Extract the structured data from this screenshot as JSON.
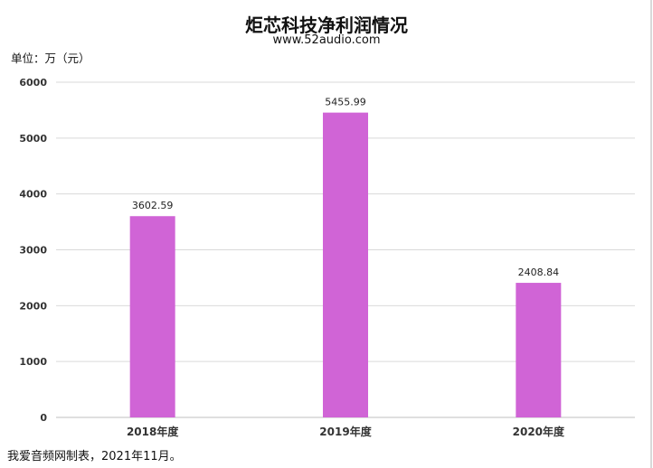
{
  "title": "炬芯科技净利润情况",
  "subtitle": "www.52audio.com",
  "unit_label": "单位：万（元）",
  "footnote": "我爱音频网制表，2021年11月。",
  "colors": {
    "bar": "#d064d6",
    "grid": "#d9d9d9",
    "axis": "#bfbfbf"
  },
  "chart_data": {
    "type": "bar",
    "categories": [
      "2018年度",
      "2019年度",
      "2020年度"
    ],
    "values": [
      3602.59,
      5455.99,
      2408.84
    ],
    "data_labels": [
      "3602.59",
      "5455.99",
      "2408.84"
    ],
    "yticks": [
      0,
      1000,
      2000,
      3000,
      4000,
      5000,
      6000
    ],
    "ylim": [
      0,
      6000
    ],
    "grid": true,
    "legend": "none"
  }
}
